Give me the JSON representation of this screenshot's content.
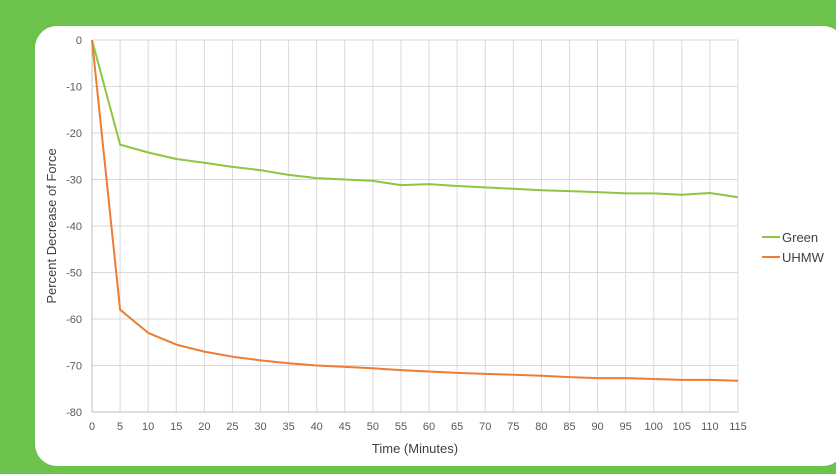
{
  "chart_data": {
    "type": "line",
    "xlabel": "Time (Minutes)",
    "ylabel": "Percent Decrease of Force",
    "x": [
      0,
      5,
      10,
      15,
      20,
      25,
      30,
      35,
      40,
      45,
      50,
      55,
      60,
      65,
      70,
      75,
      80,
      85,
      90,
      95,
      100,
      105,
      110,
      115
    ],
    "xlim": [
      0,
      115
    ],
    "ylim": [
      -80,
      0
    ],
    "xticks": [
      0,
      5,
      10,
      15,
      20,
      25,
      30,
      35,
      40,
      45,
      50,
      55,
      60,
      65,
      70,
      75,
      80,
      85,
      90,
      95,
      100,
      105,
      110,
      115
    ],
    "yticks": [
      0,
      -10,
      -20,
      -30,
      -40,
      -50,
      -60,
      -70,
      -80
    ],
    "grid": true,
    "legend_position": "right",
    "series": [
      {
        "name": "Green",
        "color": "#8dc63f",
        "values": [
          0,
          -22.5,
          -24.2,
          -25.6,
          -26.4,
          -27.3,
          -28.0,
          -29.0,
          -29.7,
          -30.0,
          -30.3,
          -31.2,
          -31.0,
          -31.4,
          -31.7,
          -32.0,
          -32.3,
          -32.5,
          -32.7,
          -33.0,
          -33.0,
          -33.3,
          -32.9,
          -33.8
        ]
      },
      {
        "name": "UHMW",
        "color": "#ed7d31",
        "values": [
          0,
          -58.0,
          -63.0,
          -65.5,
          -67.0,
          -68.1,
          -68.9,
          -69.5,
          -70.0,
          -70.3,
          -70.6,
          -71.0,
          -71.3,
          -71.6,
          -71.8,
          -72.0,
          -72.2,
          -72.5,
          -72.7,
          -72.7,
          -72.9,
          -73.1,
          -73.1,
          -73.3
        ]
      }
    ]
  }
}
